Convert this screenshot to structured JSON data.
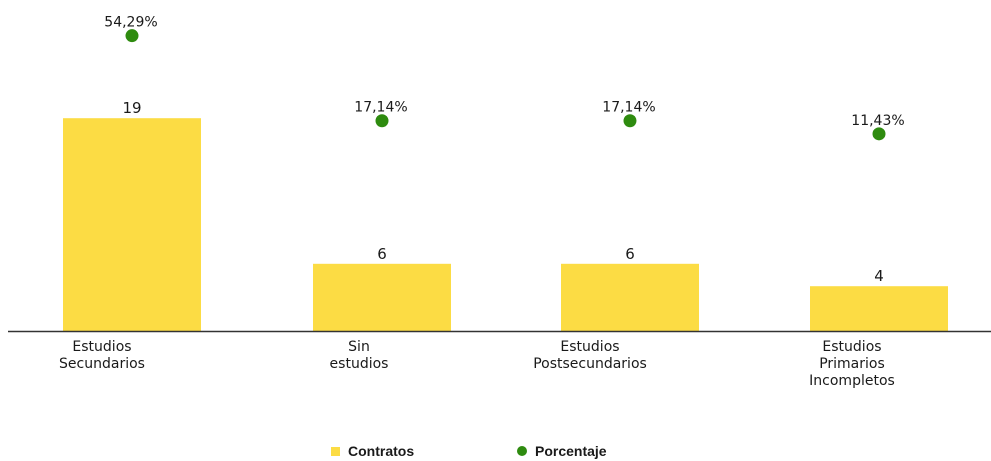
{
  "chart_data": {
    "type": "bar",
    "categories": [
      "Estudios\nSecundarios",
      "Sin\nestudios",
      "Estudios\nPostsecundarios",
      "Estudios\nPrimarios\nIncompletos"
    ],
    "series": [
      {
        "name": "Contratos",
        "kind": "bar",
        "values": [
          19,
          6,
          6,
          4
        ],
        "labels": [
          "19",
          "6",
          "6",
          "4"
        ]
      },
      {
        "name": "Porcentaje",
        "kind": "point",
        "values": [
          54.29,
          17.14,
          17.14,
          11.43
        ],
        "labels": [
          "54,29%",
          "17,14%",
          "17,14%",
          "11,43%"
        ]
      }
    ],
    "colors": {
      "bar": "#FCDC44",
      "point": "#2E8B0F",
      "axis": "#333333"
    },
    "legend": {
      "position": "bottom"
    },
    "grid": false,
    "title": "",
    "xlabel": "",
    "ylabel": ""
  }
}
